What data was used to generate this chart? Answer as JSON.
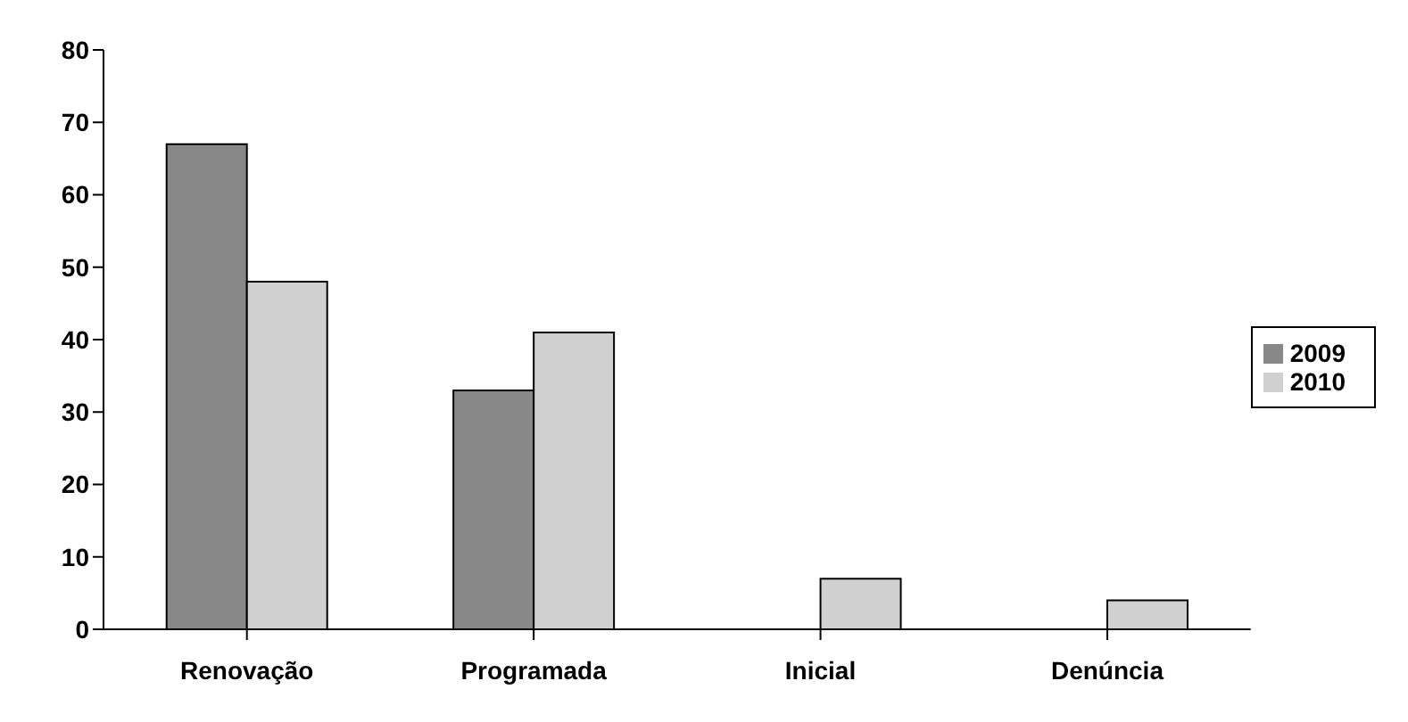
{
  "chart_data": {
    "type": "bar",
    "categories": [
      "Renovação",
      "Programada",
      "Inicial",
      "Denúncia"
    ],
    "series": [
      {
        "name": "2009",
        "color": "#888888",
        "values": [
          67,
          33,
          0,
          0
        ]
      },
      {
        "name": "2010",
        "color": "#d0d0d0",
        "values": [
          48,
          41,
          7,
          4
        ]
      }
    ],
    "ylim": [
      0,
      80
    ],
    "yticks": [
      0,
      10,
      20,
      30,
      40,
      50,
      60,
      70,
      80
    ],
    "grid": false,
    "legend": "right"
  }
}
